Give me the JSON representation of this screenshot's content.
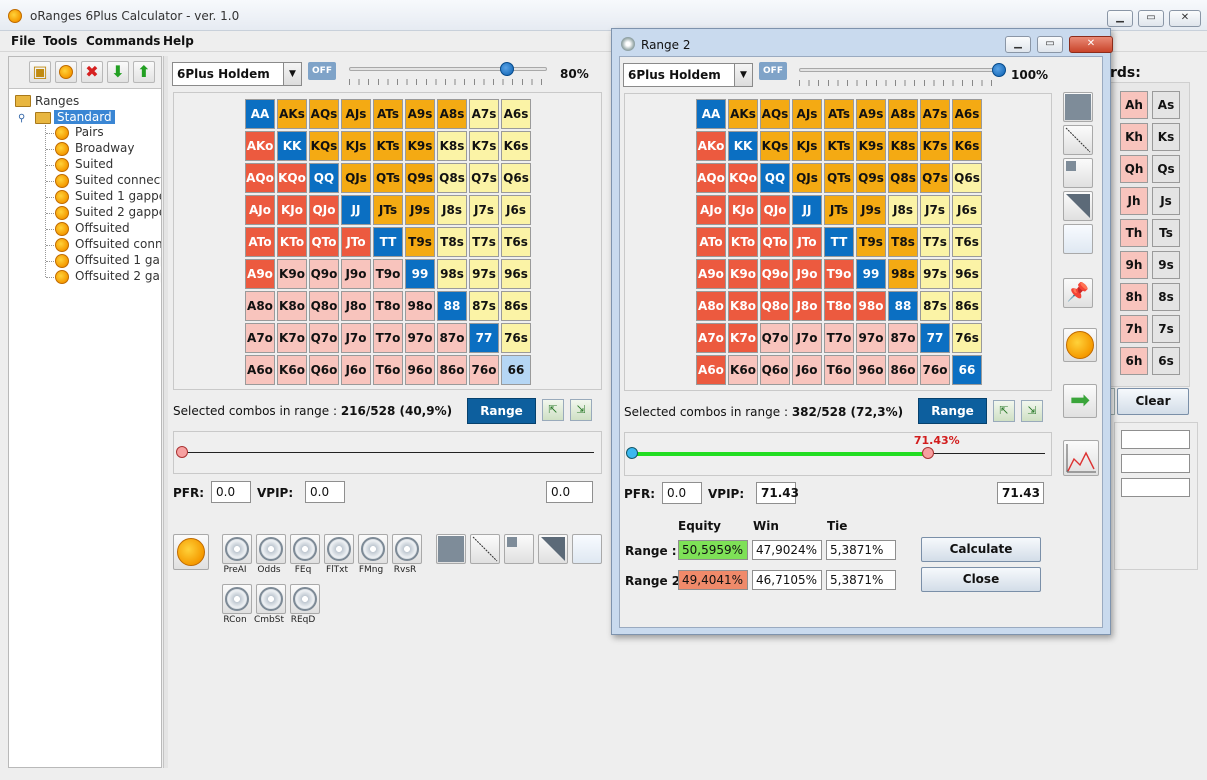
{
  "main_window": {
    "title": "oRanges 6Plus Calculator - ver. 1.0",
    "menu": [
      "File",
      "Tools",
      "Commands",
      "Help"
    ]
  },
  "tree": {
    "root": "Ranges",
    "selected": "Standard",
    "items": [
      "Pairs",
      "Broadway",
      "Suited",
      "Suited connecto",
      "Suited 1 gappe",
      "Suited 2 gappe",
      "Offsuited",
      "Offsuited conne",
      "Offsuited 1 gap",
      "Offsuited 2 gap"
    ]
  },
  "main_range": {
    "game": "6Plus Holdem",
    "off_label": "OFF",
    "slider_percent": "80%",
    "slider_value": 0.8,
    "selected_label": "Selected combos in range :",
    "selected_value": "216/528 (40,9%)",
    "range_button": "Range",
    "pfr_label": "PFR:",
    "pfr_value": "0.0",
    "vpip_label": "VPIP:",
    "vpip_value": "0.0",
    "right_value": "0.0",
    "grid_colors": [
      [
        "b",
        "o",
        "o",
        "o",
        "o",
        "o",
        "o",
        "y",
        "y"
      ],
      [
        "r",
        "b",
        "o",
        "o",
        "o",
        "o",
        "y",
        "y",
        "y"
      ],
      [
        "r",
        "r",
        "b",
        "o",
        "o",
        "o",
        "y",
        "y",
        "y"
      ],
      [
        "r",
        "r",
        "r",
        "b",
        "o",
        "o",
        "y",
        "y",
        "y"
      ],
      [
        "r",
        "r",
        "r",
        "r",
        "b",
        "o",
        "y",
        "y",
        "y"
      ],
      [
        "r",
        "p",
        "p",
        "p",
        "p",
        "b",
        "y",
        "y",
        "y"
      ],
      [
        "p",
        "p",
        "p",
        "p",
        "p",
        "p",
        "b",
        "y",
        "y"
      ],
      [
        "p",
        "p",
        "p",
        "p",
        "p",
        "p",
        "p",
        "b",
        "y"
      ],
      [
        "p",
        "p",
        "p",
        "p",
        "p",
        "p",
        "p",
        "p",
        "lb"
      ]
    ]
  },
  "grid_labels": [
    [
      "AA",
      "AKs",
      "AQs",
      "AJs",
      "ATs",
      "A9s",
      "A8s",
      "A7s",
      "A6s"
    ],
    [
      "AKo",
      "KK",
      "KQs",
      "KJs",
      "KTs",
      "K9s",
      "K8s",
      "K7s",
      "K6s"
    ],
    [
      "AQo",
      "KQo",
      "QQ",
      "QJs",
      "QTs",
      "Q9s",
      "Q8s",
      "Q7s",
      "Q6s"
    ],
    [
      "AJo",
      "KJo",
      "QJo",
      "JJ",
      "JTs",
      "J9s",
      "J8s",
      "J7s",
      "J6s"
    ],
    [
      "ATo",
      "KTo",
      "QTo",
      "JTo",
      "TT",
      "T9s",
      "T8s",
      "T7s",
      "T6s"
    ],
    [
      "A9o",
      "K9o",
      "Q9o",
      "J9o",
      "T9o",
      "99",
      "98s",
      "97s",
      "96s"
    ],
    [
      "A8o",
      "K8o",
      "Q8o",
      "J8o",
      "T8o",
      "98o",
      "88",
      "87s",
      "86s"
    ],
    [
      "A7o",
      "K7o",
      "Q7o",
      "J7o",
      "T7o",
      "97o",
      "87o",
      "77",
      "76s"
    ],
    [
      "A6o",
      "K6o",
      "Q6o",
      "J6o",
      "T6o",
      "96o",
      "86o",
      "76o",
      "66"
    ]
  ],
  "tools": [
    "PreAI",
    "Odds",
    "FEq",
    "FlTxt",
    "FMng",
    "RvsR",
    "RCon",
    "CmbSt",
    "REqD"
  ],
  "range2": {
    "title": "Range 2",
    "game": "6Plus Holdem",
    "off_label": "OFF",
    "slider_percent": "100%",
    "slider_value": 1.0,
    "selected_label": "Selected combos in range :",
    "selected_value": "382/528 (72,3%)",
    "range_button": "Range",
    "range_slider_label": "71.43%",
    "range_slider_value": 0.7143,
    "pfr_label": "PFR:",
    "pfr_value": "0.0",
    "vpip_label": "VPIP:",
    "vpip_value": "71.43",
    "right_value": "71.43",
    "grid_colors": [
      [
        "b",
        "o",
        "o",
        "o",
        "o",
        "o",
        "o",
        "o",
        "o"
      ],
      [
        "r",
        "b",
        "o",
        "o",
        "o",
        "o",
        "o",
        "o",
        "o"
      ],
      [
        "r",
        "r",
        "b",
        "o",
        "o",
        "o",
        "o",
        "o",
        "y"
      ],
      [
        "r",
        "r",
        "r",
        "b",
        "o",
        "o",
        "y",
        "y",
        "y"
      ],
      [
        "r",
        "r",
        "r",
        "r",
        "b",
        "o",
        "o",
        "y",
        "y"
      ],
      [
        "r",
        "r",
        "r",
        "r",
        "r",
        "b",
        "o",
        "y",
        "y"
      ],
      [
        "r",
        "r",
        "r",
        "r",
        "r",
        "r",
        "b",
        "y",
        "y"
      ],
      [
        "r",
        "r",
        "p",
        "p",
        "p",
        "p",
        "p",
        "b",
        "y"
      ],
      [
        "r",
        "p",
        "p",
        "p",
        "p",
        "p",
        "p",
        "p",
        "b"
      ]
    ],
    "equity_header": "Equity",
    "win_header": "Win",
    "tie_header": "Tie",
    "row1_label": "Range :",
    "row1_equity": "50,5959%",
    "row1_win": "47,9024%",
    "row1_tie": "5,3871%",
    "row2_label": "Range 2:",
    "row2_equity": "49,4041%",
    "row2_win": "46,7105%",
    "row2_tie": "5,3871%",
    "calculate_button": "Calculate",
    "close_button": "Close"
  },
  "board": {
    "title_fragment": "rds:",
    "cards": [
      [
        "Ah",
        "As"
      ],
      [
        "Kh",
        "Ks"
      ],
      [
        "Qh",
        "Qs"
      ],
      [
        "Jh",
        "Js"
      ],
      [
        "Th",
        "Ts"
      ],
      [
        "9h",
        "9s"
      ],
      [
        "8h",
        "8s"
      ],
      [
        "7h",
        "7s"
      ],
      [
        "6h",
        "6s"
      ]
    ],
    "clear_button": "Clear"
  },
  "colors": {
    "pair": "#0b6fc2",
    "suited": "#f4aa13",
    "suited_light": "#fbf3a6",
    "offsuit": "#ec5a3f",
    "offsuit_light": "#f8c4bd",
    "equity_win": "#7ee157",
    "equity_lose": "#f08a6a",
    "range_slider": "#22dd22"
  }
}
